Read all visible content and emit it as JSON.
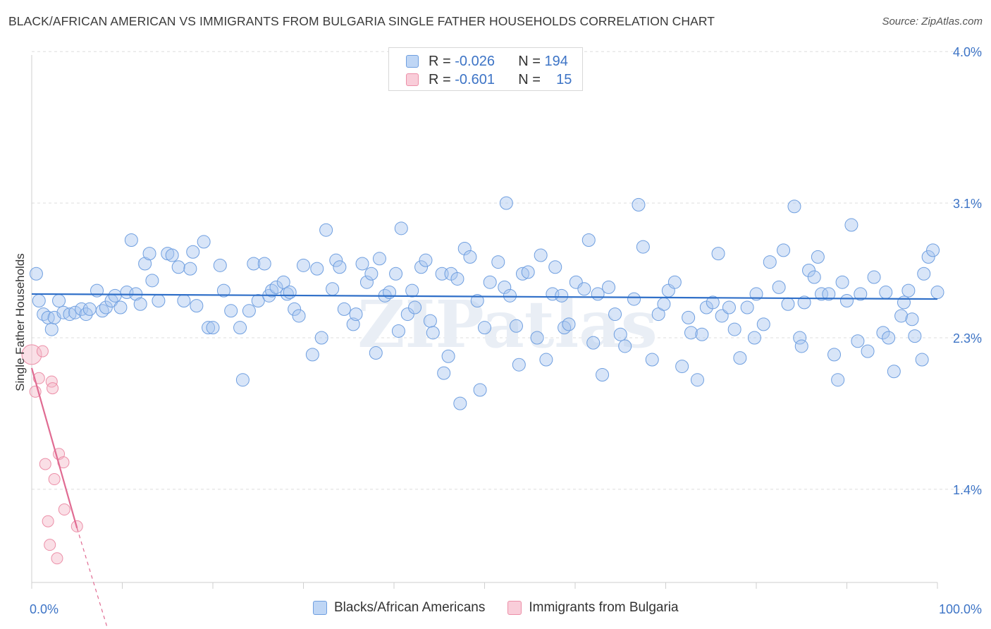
{
  "title": "BLACK/AFRICAN AMERICAN VS IMMIGRANTS FROM BULGARIA SINGLE FATHER HOUSEHOLDS CORRELATION CHART",
  "source": "Source: ZipAtlas.com",
  "watermark": "ZIPatlas",
  "legend": {
    "rows": [
      {
        "r_label": "R =",
        "r_value": "-0.026",
        "n_label": "N =",
        "n_value": "194",
        "color": "#a8c6f0"
      },
      {
        "r_label": "R =",
        "r_value": "-0.601",
        "n_label": "N =",
        "n_value": "15",
        "color": "#f5b8c8"
      }
    ]
  },
  "bottom_legend": {
    "items": [
      {
        "label": "Blacks/African Americans",
        "color": "#a8c6f0"
      },
      {
        "label": "Immigrants from Bulgaria",
        "color": "#f5b8c8"
      }
    ]
  },
  "chart_data": {
    "type": "scatter",
    "title": "BLACK/AFRICAN AMERICAN VS IMMIGRANTS FROM BULGARIA SINGLE FATHER HOUSEHOLDS CORRELATION CHART",
    "xlabel": "",
    "ylabel": "Single Father Households",
    "x_tick_labels": [
      "0.0%",
      "100.0%"
    ],
    "y_tick_labels": [
      "1.4%",
      "2.3%",
      "3.1%",
      "4.0%"
    ],
    "y_ticks": [
      1.4,
      2.3,
      3.1,
      4.0
    ],
    "xlim": [
      0,
      100
    ],
    "ylim": [
      0.55,
      4.1
    ],
    "grid": true,
    "legend_position": "top-center",
    "series": [
      {
        "name": "Blacks/African Americans",
        "color": "#a8c6f0",
        "stroke": "#6f9fe0",
        "trend": {
          "x": [
            0,
            100
          ],
          "y": [
            2.56,
            2.53
          ]
        },
        "points": [
          [
            0.5,
            2.68
          ],
          [
            0.8,
            2.52
          ],
          [
            1.3,
            2.44
          ],
          [
            1.8,
            2.42
          ],
          [
            2.2,
            2.35
          ],
          [
            2.5,
            2.42
          ],
          [
            3.0,
            2.52
          ],
          [
            3.5,
            2.45
          ],
          [
            4.2,
            2.44
          ],
          [
            4.8,
            2.45
          ],
          [
            5.5,
            2.47
          ],
          [
            6.0,
            2.44
          ],
          [
            6.4,
            2.47
          ],
          [
            7.2,
            2.58
          ],
          [
            7.8,
            2.46
          ],
          [
            8.2,
            2.48
          ],
          [
            8.8,
            2.52
          ],
          [
            9.2,
            2.55
          ],
          [
            9.8,
            2.48
          ],
          [
            10.5,
            2.57
          ],
          [
            11.0,
            2.88
          ],
          [
            11.5,
            2.56
          ],
          [
            12.0,
            2.5
          ],
          [
            12.5,
            2.74
          ],
          [
            13.0,
            2.8
          ],
          [
            13.3,
            2.64
          ],
          [
            14.0,
            2.52
          ],
          [
            15.0,
            2.8
          ],
          [
            15.5,
            2.79
          ],
          [
            16.2,
            2.72
          ],
          [
            16.8,
            2.52
          ],
          [
            17.5,
            2.71
          ],
          [
            17.8,
            2.81
          ],
          [
            18.2,
            2.49
          ],
          [
            19.0,
            2.87
          ],
          [
            19.5,
            2.36
          ],
          [
            20.0,
            2.36
          ],
          [
            20.8,
            2.73
          ],
          [
            21.2,
            2.58
          ],
          [
            22.0,
            2.46
          ],
          [
            23.0,
            2.36
          ],
          [
            23.3,
            2.05
          ],
          [
            24.0,
            2.46
          ],
          [
            24.5,
            2.74
          ],
          [
            25.0,
            2.52
          ],
          [
            25.7,
            2.74
          ],
          [
            26.2,
            2.55
          ],
          [
            26.5,
            2.58
          ],
          [
            27.0,
            2.6
          ],
          [
            27.8,
            2.63
          ],
          [
            28.2,
            2.56
          ],
          [
            28.5,
            2.57
          ],
          [
            29.0,
            2.47
          ],
          [
            29.5,
            2.43
          ],
          [
            30.0,
            2.73
          ],
          [
            31.0,
            2.2
          ],
          [
            31.5,
            2.71
          ],
          [
            32.0,
            2.3
          ],
          [
            32.5,
            2.94
          ],
          [
            33.2,
            2.59
          ],
          [
            33.6,
            2.76
          ],
          [
            34.0,
            2.72
          ],
          [
            34.5,
            2.47
          ],
          [
            35.5,
            2.38
          ],
          [
            35.8,
            2.44
          ],
          [
            36.5,
            2.74
          ],
          [
            37.0,
            2.63
          ],
          [
            37.5,
            2.68
          ],
          [
            38.0,
            2.21
          ],
          [
            38.4,
            2.77
          ],
          [
            39.0,
            2.55
          ],
          [
            39.5,
            2.57
          ],
          [
            40.2,
            2.68
          ],
          [
            40.5,
            2.34
          ],
          [
            40.8,
            2.95
          ],
          [
            41.5,
            2.44
          ],
          [
            42.0,
            2.58
          ],
          [
            42.3,
            2.48
          ],
          [
            43.0,
            2.72
          ],
          [
            43.5,
            2.76
          ],
          [
            44.0,
            2.4
          ],
          [
            44.3,
            2.33
          ],
          [
            45.3,
            2.68
          ],
          [
            45.5,
            2.09
          ],
          [
            46.0,
            2.19
          ],
          [
            46.3,
            2.68
          ],
          [
            47.0,
            2.65
          ],
          [
            47.3,
            1.91
          ],
          [
            47.8,
            2.83
          ],
          [
            48.4,
            2.78
          ],
          [
            49.2,
            2.52
          ],
          [
            49.5,
            1.99
          ],
          [
            50.0,
            2.36
          ],
          [
            50.6,
            2.63
          ],
          [
            51.5,
            2.75
          ],
          [
            52.2,
            2.6
          ],
          [
            52.4,
            3.1
          ],
          [
            52.8,
            2.55
          ],
          [
            53.5,
            2.37
          ],
          [
            53.8,
            2.14
          ],
          [
            54.2,
            2.68
          ],
          [
            54.8,
            2.69
          ],
          [
            55.8,
            2.3
          ],
          [
            56.2,
            2.79
          ],
          [
            56.8,
            2.17
          ],
          [
            57.5,
            2.56
          ],
          [
            57.8,
            2.72
          ],
          [
            58.5,
            2.55
          ],
          [
            58.8,
            2.36
          ],
          [
            59.3,
            2.38
          ],
          [
            60.1,
            2.63
          ],
          [
            61.0,
            2.59
          ],
          [
            61.5,
            2.88
          ],
          [
            62.0,
            2.27
          ],
          [
            62.5,
            2.56
          ],
          [
            63.0,
            2.08
          ],
          [
            63.7,
            2.6
          ],
          [
            64.4,
            2.44
          ],
          [
            65.0,
            2.32
          ],
          [
            65.5,
            2.25
          ],
          [
            66.5,
            2.53
          ],
          [
            67.0,
            3.09
          ],
          [
            67.5,
            2.84
          ],
          [
            68.5,
            2.17
          ],
          [
            69.2,
            2.44
          ],
          [
            69.8,
            2.5
          ],
          [
            70.3,
            2.58
          ],
          [
            71.0,
            2.63
          ],
          [
            71.8,
            2.13
          ],
          [
            72.5,
            2.42
          ],
          [
            72.8,
            2.33
          ],
          [
            73.5,
            2.05
          ],
          [
            74.0,
            2.32
          ],
          [
            74.5,
            2.48
          ],
          [
            75.2,
            2.51
          ],
          [
            75.8,
            2.8
          ],
          [
            76.2,
            2.43
          ],
          [
            77.0,
            2.48
          ],
          [
            77.6,
            2.35
          ],
          [
            78.2,
            2.18
          ],
          [
            79.0,
            2.48
          ],
          [
            79.8,
            2.3
          ],
          [
            80.0,
            2.56
          ],
          [
            80.8,
            2.38
          ],
          [
            81.5,
            2.75
          ],
          [
            82.5,
            2.6
          ],
          [
            83.0,
            2.82
          ],
          [
            83.5,
            2.5
          ],
          [
            84.2,
            3.08
          ],
          [
            84.8,
            2.3
          ],
          [
            85.0,
            2.25
          ],
          [
            85.3,
            2.51
          ],
          [
            85.8,
            2.7
          ],
          [
            86.4,
            2.66
          ],
          [
            86.8,
            2.78
          ],
          [
            87.2,
            2.56
          ],
          [
            88.0,
            2.56
          ],
          [
            88.6,
            2.2
          ],
          [
            89.0,
            2.05
          ],
          [
            89.5,
            2.63
          ],
          [
            90.0,
            2.52
          ],
          [
            90.5,
            2.97
          ],
          [
            91.2,
            2.28
          ],
          [
            91.5,
            2.56
          ],
          [
            92.3,
            2.22
          ],
          [
            93.0,
            2.66
          ],
          [
            94.0,
            2.33
          ],
          [
            94.3,
            2.57
          ],
          [
            94.6,
            2.3
          ],
          [
            95.2,
            2.1
          ],
          [
            96.0,
            2.43
          ],
          [
            96.3,
            2.51
          ],
          [
            96.8,
            2.58
          ],
          [
            97.2,
            2.41
          ],
          [
            97.5,
            2.31
          ],
          [
            98.3,
            2.17
          ],
          [
            98.5,
            2.68
          ],
          [
            99.0,
            2.78
          ],
          [
            99.5,
            2.82
          ],
          [
            100.0,
            2.57
          ]
        ]
      },
      {
        "name": "Immigrants from Bulgaria",
        "color": "#f5b8c8",
        "stroke": "#ec8fa8",
        "trend": {
          "x": [
            0.0,
            5.0
          ],
          "y": [
            2.12,
            1.17
          ]
        },
        "trend_dashed": {
          "x": [
            5.0,
            8.5
          ],
          "y": [
            1.17,
            0.55
          ]
        },
        "points": [
          [
            0.0,
            2.2
          ],
          [
            0.4,
            1.98
          ],
          [
            0.8,
            2.06
          ],
          [
            1.2,
            2.22
          ],
          [
            1.5,
            1.55
          ],
          [
            1.8,
            1.21
          ],
          [
            2.0,
            1.07
          ],
          [
            2.2,
            2.04
          ],
          [
            2.3,
            2.0
          ],
          [
            2.5,
            1.46
          ],
          [
            2.8,
            0.99
          ],
          [
            3.0,
            1.61
          ],
          [
            3.5,
            1.56
          ],
          [
            3.6,
            1.28
          ],
          [
            5.0,
            1.18
          ]
        ]
      }
    ]
  }
}
